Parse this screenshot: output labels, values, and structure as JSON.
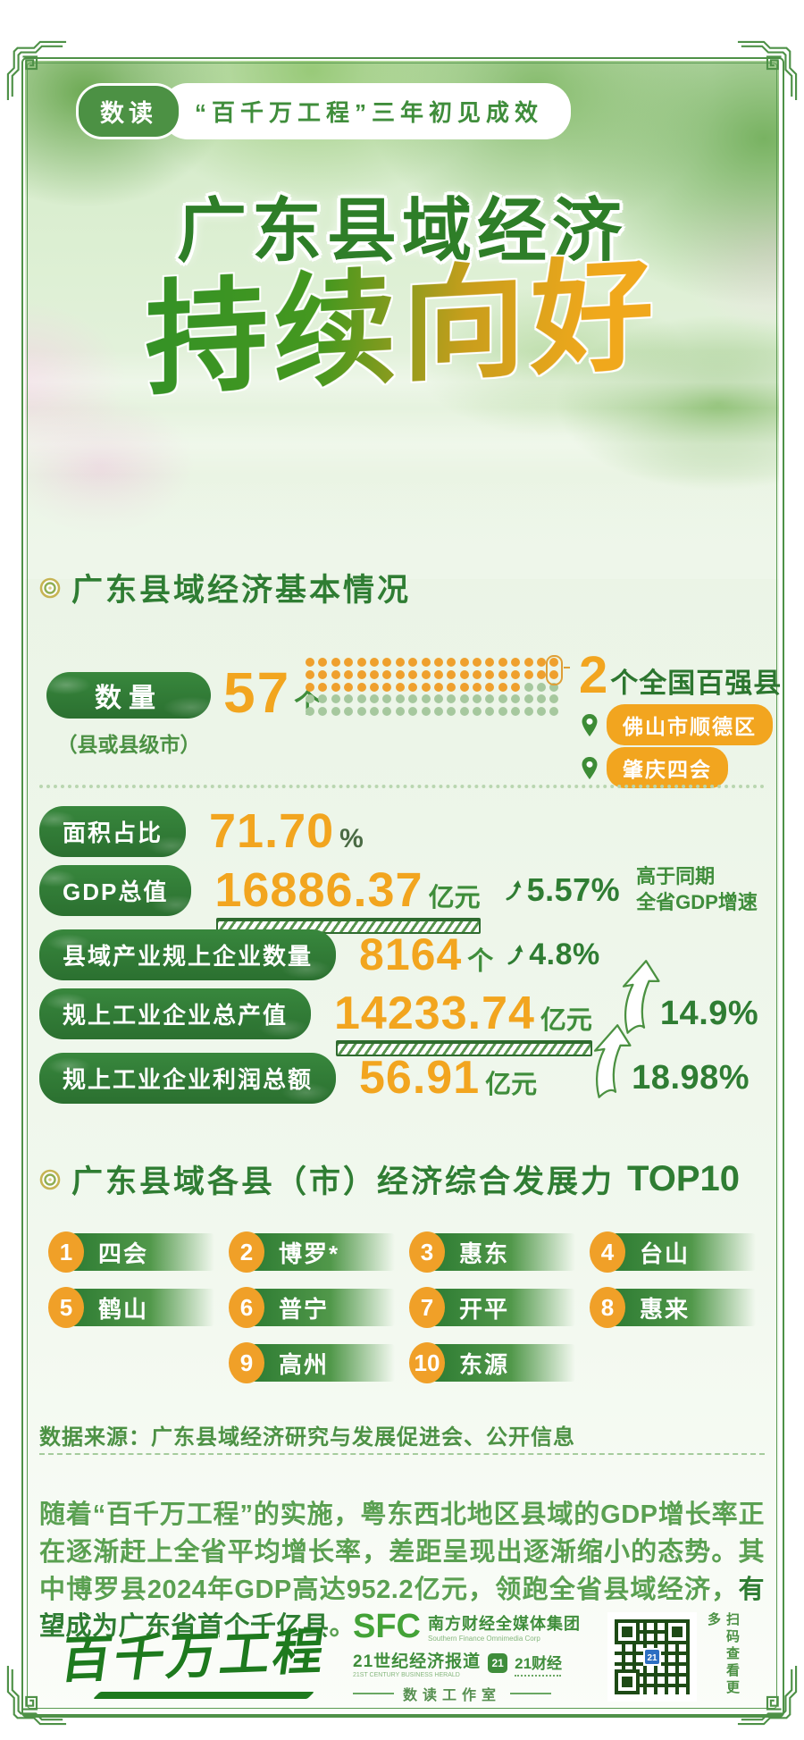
{
  "banner": {
    "tag": "数读",
    "title": "“百千万工程”三年初见成效"
  },
  "hero": {
    "title": "广东县域经济",
    "subtitle": "持续向好"
  },
  "section1": {
    "heading": "广东县域经济基本情况",
    "quantity": {
      "label": "数量",
      "sublabel": "（县或县级市）",
      "value": "57",
      "unit": "个",
      "dots": {
        "total": 100,
        "highlighted": 57,
        "columns": 20
      },
      "hundred_strong": {
        "value": "2",
        "label": "个全国百强县",
        "locations": [
          "佛山市顺德区",
          "肇庆四会"
        ]
      }
    },
    "stats": [
      {
        "label": "面积占比",
        "value": "71.70",
        "unit": "%",
        "unit_style": "dark"
      },
      {
        "label": "GDP总值",
        "value": "16886.37",
        "unit": "亿元",
        "bar": true,
        "growth": "5.57%",
        "arrow": "small",
        "note_line1": "高于同期",
        "note_line2": "全省GDP增速"
      },
      {
        "label": "县域产业规上企业数量",
        "value": "8164",
        "unit": "个",
        "growth": "4.8%",
        "arrow": "small"
      },
      {
        "label": "规上工业企业总产值",
        "value": "14233.74",
        "unit": "亿元",
        "bar": true,
        "growth": "14.9%",
        "arrow": "big"
      },
      {
        "label": "规上工业企业利润总额",
        "value": "56.91",
        "unit": "亿元",
        "growth": "18.98%",
        "arrow": "big"
      }
    ]
  },
  "section2": {
    "heading": "广东县域各县（市）经济综合发展力",
    "heading_highlight": "TOP10",
    "ranking": [
      {
        "rank": "1",
        "name": "四会"
      },
      {
        "rank": "2",
        "name": "博罗*"
      },
      {
        "rank": "3",
        "name": "惠东"
      },
      {
        "rank": "4",
        "name": "台山"
      },
      {
        "rank": "5",
        "name": "鹤山"
      },
      {
        "rank": "6",
        "name": "普宁"
      },
      {
        "rank": "7",
        "name": "开平"
      },
      {
        "rank": "8",
        "name": "惠来"
      },
      {
        "rank": "9",
        "name": "高州"
      },
      {
        "rank": "10",
        "name": "东源"
      }
    ]
  },
  "source": {
    "text": "数据来源：广东县域经济研究与发展促进会、公开信息"
  },
  "paragraph": {
    "part1": "随着“百千万工程”的实施，粤东西北地区县域的GDP增长率正在逐渐赶上全省平均增长率，差距呈现出逐渐缩小的态势。其中博罗县2024年GDP高达952.2亿元，领跑全省县域经济，",
    "bold": "有望成为广东省首个千亿县",
    "part2": "。"
  },
  "footer": {
    "logo": "百千万工程",
    "sfc_abbr": "SFC",
    "sfc_name": "南方财经全媒体集团",
    "sfc_en": "Southern Finance Omnimedia Corp",
    "herald": "21世纪经济报道",
    "herald_en": "21ST CENTURY BUSINESS HERALD",
    "badge": "21",
    "finance": "21财经",
    "studio": "数读工作室",
    "qr_caption": "扫码查看更多",
    "qr_badge": "21"
  },
  "colors": {
    "primary_green": "#2f7d33",
    "pill_green": "#2e7d32",
    "accent_orange": "#f2a51f",
    "dot_orange": "#efa02d",
    "dot_green": "#a6c89e",
    "frame_green": "#4e9147",
    "light_bg": "#ecf5e9"
  }
}
